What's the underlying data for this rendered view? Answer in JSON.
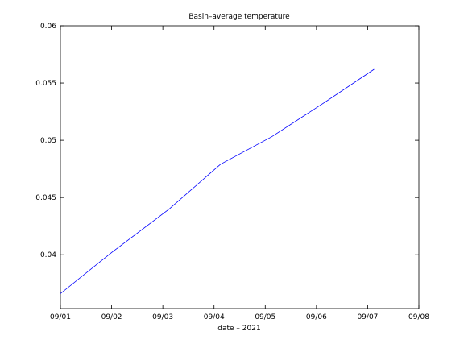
{
  "chart_data": {
    "type": "line",
    "title": "Basin–average temperature",
    "xlabel": "date –   2021",
    "ylabel": "",
    "x_tick_labels": [
      "09/01",
      "09/02",
      "09/03",
      "09/04",
      "09/05",
      "09/06",
      "09/07",
      "09/08"
    ],
    "y_tick_labels": [
      "0.04",
      "0.045",
      "0.05",
      "0.055",
      "0.06"
    ],
    "y_ticks": [
      0.04,
      0.045,
      0.05,
      0.055,
      0.06
    ],
    "xlim": [
      "2021-09-01",
      "2021-09-08"
    ],
    "ylim": [
      0.0353,
      0.06
    ],
    "grid": false,
    "series": [
      {
        "color": "#0000ff",
        "points": [
          {
            "x": "2021-09-01 00:00",
            "y": 0.0366
          },
          {
            "x": "2021-09-02 00:00",
            "y": 0.0402
          },
          {
            "x": "2021-09-03 03:00",
            "y": 0.044
          },
          {
            "x": "2021-09-04 03:00",
            "y": 0.0479
          },
          {
            "x": "2021-09-05 03:00",
            "y": 0.0503
          },
          {
            "x": "2021-09-06 03:00",
            "y": 0.0532
          },
          {
            "x": "2021-09-07 03:00",
            "y": 0.0562
          }
        ]
      }
    ]
  }
}
